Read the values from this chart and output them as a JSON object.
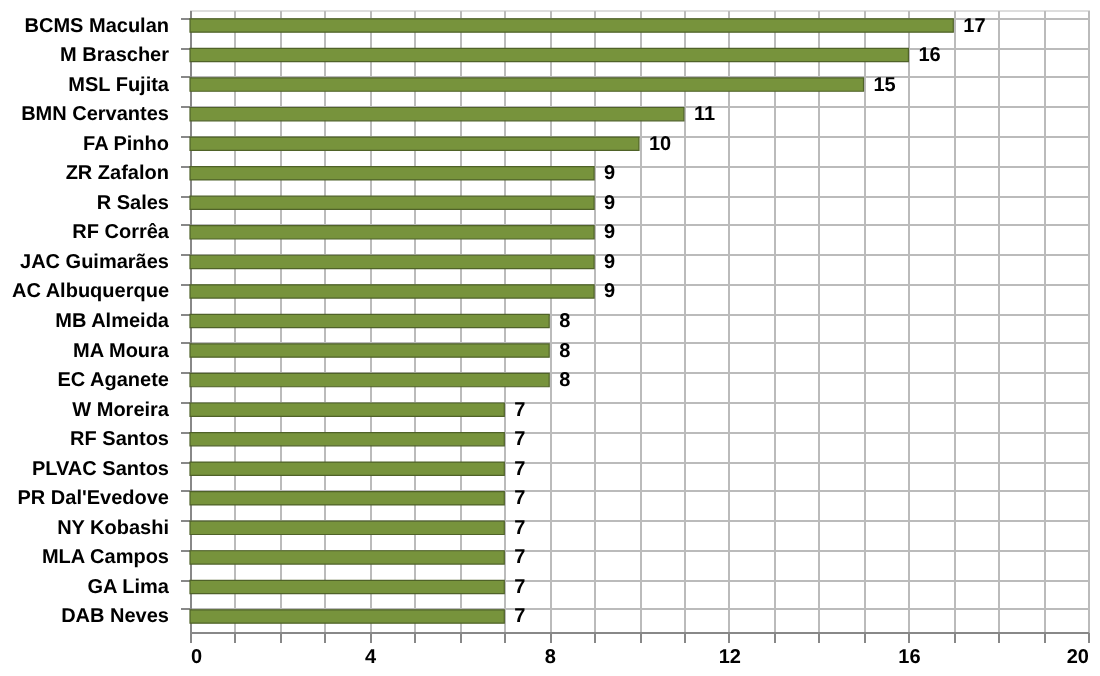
{
  "chart_data": {
    "type": "bar",
    "orientation": "horizontal",
    "categories": [
      "BCMS Maculan",
      "M Brascher",
      "MSL Fujita",
      "BMN Cervantes",
      "FA Pinho",
      "ZR Zafalon",
      "R Sales",
      "RF Corrêa",
      "JAC Guimarães",
      "AC Albuquerque",
      "MB Almeida",
      "MA Moura",
      "EC Aganete",
      "W Moreira",
      "RF Santos",
      "PLVAC Santos",
      "PR Dal'Evedove",
      "NY Kobashi",
      "MLA Campos",
      "GA Lima",
      "DAB Neves"
    ],
    "values": [
      17,
      16,
      15,
      11,
      10,
      9,
      9,
      9,
      9,
      9,
      8,
      8,
      8,
      7,
      7,
      7,
      7,
      7,
      7,
      7,
      7
    ],
    "color": "#77933c",
    "xlim": [
      0,
      20
    ],
    "xticks": [
      0,
      {
        "value": 1,
        "label": null
      },
      {
        "value": 2,
        "label": null
      },
      {
        "value": 3,
        "label": null
      },
      4,
      {
        "value": 5,
        "label": null
      },
      {
        "value": 6,
        "label": null
      },
      {
        "value": 7,
        "label": null
      },
      8,
      {
        "value": 9,
        "label": null
      },
      {
        "value": 10,
        "label": null
      },
      {
        "value": 11,
        "label": null
      },
      12,
      {
        "value": 13,
        "label": null
      },
      {
        "value": 14,
        "label": null
      },
      {
        "value": 15,
        "label": null
      },
      16,
      {
        "value": 17,
        "label": null
      },
      {
        "value": 18,
        "label": null
      },
      {
        "value": 19,
        "label": null
      },
      20
    ],
    "data_labels": true,
    "grid": true
  }
}
